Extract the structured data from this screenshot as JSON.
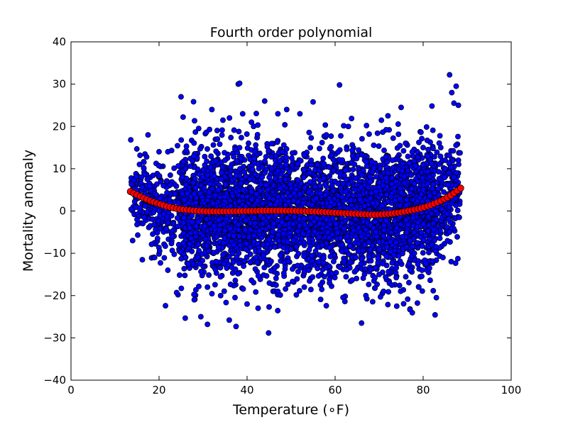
{
  "chart_data": {
    "type": "scatter",
    "title": "Fourth order polynomial",
    "xlabel": "Temperature (∘F)",
    "ylabel": "Mortality anomaly",
    "xlim": [
      0,
      100
    ],
    "ylim": [
      -40,
      40
    ],
    "xticks": [
      0,
      20,
      40,
      60,
      80,
      100
    ],
    "yticks": [
      -40,
      -30,
      -20,
      -10,
      0,
      10,
      20,
      30,
      40
    ],
    "xtick_labels": [
      "0",
      "20",
      "40",
      "60",
      "80",
      "100"
    ],
    "ytick_labels": [
      "−40",
      "−30",
      "−20",
      "−10",
      "0",
      "10",
      "20",
      "30",
      "40"
    ],
    "grid": false,
    "legend": "none",
    "observations": {
      "color": "#0000ff",
      "count_approx": 4500,
      "x_range": [
        13.5,
        88.5
      ],
      "spread_sd_approx": 7.5,
      "points": [
        [
          25,
          27
        ],
        [
          38,
          30
        ],
        [
          38.3,
          30.2
        ],
        [
          61,
          29.8
        ],
        [
          86,
          32.2
        ],
        [
          87.5,
          29.5
        ],
        [
          86.5,
          28
        ],
        [
          88,
          25
        ],
        [
          87,
          25.5
        ],
        [
          17.5,
          18
        ],
        [
          29,
          19.5
        ],
        [
          47,
          23
        ],
        [
          55,
          25.8
        ],
        [
          44,
          26
        ],
        [
          49,
          24
        ],
        [
          32,
          24
        ],
        [
          22,
          14
        ],
        [
          84,
          15
        ],
        [
          31,
          -26.8
        ],
        [
          37.5,
          -27.3
        ],
        [
          29.5,
          -25
        ],
        [
          66,
          -26.5
        ],
        [
          77,
          -23.3
        ],
        [
          42.5,
          -23
        ],
        [
          58,
          -22.4
        ],
        [
          74,
          -22.5
        ],
        [
          14,
          -7
        ],
        [
          15,
          -2
        ],
        [
          16,
          8
        ],
        [
          19,
          -11
        ],
        [
          20,
          14
        ],
        [
          22,
          -14
        ],
        [
          24,
          -19.3
        ],
        [
          28,
          -21
        ],
        [
          34,
          -20
        ],
        [
          36,
          22
        ],
        [
          39,
          23
        ],
        [
          41,
          21
        ],
        [
          52,
          23
        ],
        [
          58,
          18
        ],
        [
          63,
          20
        ],
        [
          72,
          22.5
        ],
        [
          75,
          24.5
        ],
        [
          80,
          15
        ],
        [
          82,
          24.8
        ],
        [
          83,
          -20.5
        ],
        [
          79,
          -18
        ],
        [
          71,
          -19
        ],
        [
          67,
          -20
        ],
        [
          53,
          -18
        ],
        [
          47,
          -19
        ],
        [
          40,
          -22
        ],
        [
          45,
          -22.7
        ],
        [
          31,
          -18
        ],
        [
          18,
          2
        ],
        [
          21,
          6
        ],
        [
          23,
          -6
        ],
        [
          26,
          10
        ],
        [
          27,
          -4
        ],
        [
          30,
          8
        ],
        [
          33,
          -12
        ],
        [
          35,
          12
        ],
        [
          37,
          -8
        ],
        [
          39,
          5
        ],
        [
          42,
          -11
        ],
        [
          44,
          9
        ],
        [
          46,
          -3
        ],
        [
          48,
          14
        ],
        [
          50,
          -9
        ],
        [
          52,
          4
        ],
        [
          54,
          -14
        ],
        [
          56,
          11
        ],
        [
          58,
          -2
        ],
        [
          60,
          7
        ],
        [
          62,
          -12
        ],
        [
          64,
          13
        ],
        [
          66,
          -6
        ],
        [
          68,
          3
        ],
        [
          70,
          -15
        ],
        [
          72,
          9
        ],
        [
          74,
          -4
        ],
        [
          76,
          16
        ],
        [
          78,
          -10
        ],
        [
          80,
          5
        ],
        [
          82,
          -8
        ],
        [
          84,
          2
        ],
        [
          85,
          10
        ],
        [
          86,
          -5
        ],
        [
          87,
          8
        ],
        [
          88,
          12
        ],
        [
          84.5,
          -11
        ],
        [
          81,
          13
        ],
        [
          77,
          -14
        ],
        [
          73,
          12
        ]
      ]
    },
    "fit": {
      "name": "Fourth order polynomial",
      "color": "#ff0000",
      "x_range": [
        13.5,
        88.5
      ],
      "points": [
        [
          13.5,
          4.6
        ],
        [
          16,
          3.3
        ],
        [
          18,
          2.4
        ],
        [
          20,
          1.7
        ],
        [
          22,
          1.0
        ],
        [
          25,
          0.4
        ],
        [
          28,
          0.1
        ],
        [
          31,
          -0.1
        ],
        [
          35,
          -0.1
        ],
        [
          40,
          0.0
        ],
        [
          45,
          0.1
        ],
        [
          50,
          0.05
        ],
        [
          55,
          -0.1
        ],
        [
          60,
          -0.4
        ],
        [
          65,
          -0.7
        ],
        [
          68,
          -0.85
        ],
        [
          70,
          -0.85
        ],
        [
          72,
          -0.7
        ],
        [
          75,
          -0.3
        ],
        [
          78,
          0.3
        ],
        [
          80,
          0.8
        ],
        [
          82,
          1.5
        ],
        [
          84,
          2.4
        ],
        [
          86,
          3.5
        ],
        [
          88.5,
          5.4
        ]
      ]
    }
  }
}
